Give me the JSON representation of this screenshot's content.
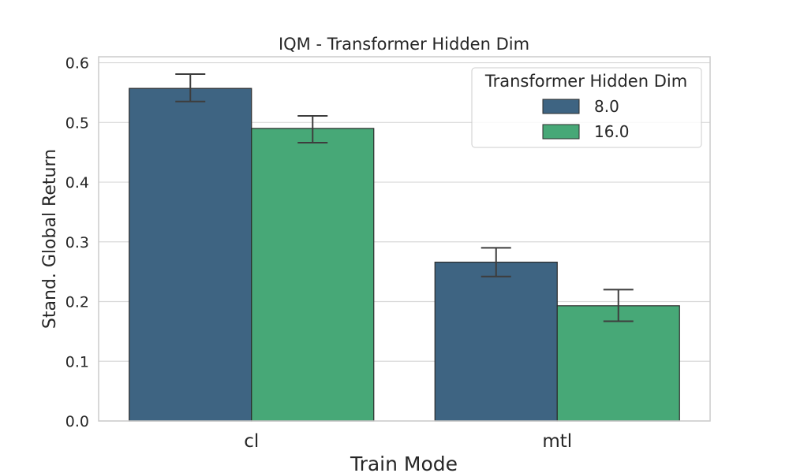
{
  "chart_data": {
    "type": "bar",
    "title": "IQM - Transformer Hidden Dim",
    "xlabel": "Train Mode",
    "ylabel": "Stand. Global Return",
    "categories": [
      "cl",
      "mtl"
    ],
    "ylim": [
      0,
      0.61
    ],
    "yticks": [
      0.0,
      0.1,
      0.2,
      0.3,
      0.4,
      0.5,
      0.6
    ],
    "ytick_labels": [
      "0.0",
      "0.1",
      "0.2",
      "0.3",
      "0.4",
      "0.5",
      "0.6"
    ],
    "grid": true,
    "legend": {
      "title": "Transformer Hidden Dim",
      "placement": "top-right"
    },
    "series": [
      {
        "name": "8.0",
        "color": "#3e6482",
        "values": [
          0.557,
          0.266
        ],
        "err_low": [
          0.535,
          0.242
        ],
        "err_high": [
          0.581,
          0.29
        ]
      },
      {
        "name": "16.0",
        "color": "#47a877",
        "values": [
          0.49,
          0.193
        ],
        "err_low": [
          0.466,
          0.167
        ],
        "err_high": [
          0.511,
          0.22
        ]
      }
    ]
  }
}
